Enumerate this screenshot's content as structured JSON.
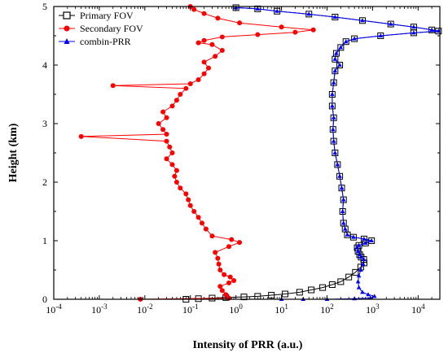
{
  "chart_data": {
    "type": "scatter",
    "xlabel": "Intensity of PRR (a.u.)",
    "ylabel": "Height (km)",
    "xscale": "log",
    "xlim": [
      0.0001,
      30000
    ],
    "ylim": [
      0,
      5
    ],
    "x_ticks": [
      {
        "value": 0.0001,
        "base": "10",
        "exp": "-4"
      },
      {
        "value": 0.001,
        "base": "10",
        "exp": "-3"
      },
      {
        "value": 0.01,
        "base": "10",
        "exp": "-2"
      },
      {
        "value": 0.1,
        "base": "10",
        "exp": "-1"
      },
      {
        "value": 1,
        "base": "10",
        "exp": "0"
      },
      {
        "value": 10,
        "base": "10",
        "exp": "1"
      },
      {
        "value": 100,
        "base": "10",
        "exp": "2"
      },
      {
        "value": 1000,
        "base": "10",
        "exp": "3"
      },
      {
        "value": 10000,
        "base": "10",
        "exp": "4"
      }
    ],
    "y_ticks": [
      "0",
      "1",
      "2",
      "3",
      "4",
      "5"
    ],
    "legend_position": "top-left",
    "grid": false,
    "series": [
      {
        "name": "Primary FOV",
        "color": "#000000",
        "marker": "open-square",
        "points": [
          [
            0.08,
            0.0
          ],
          [
            0.15,
            0.01
          ],
          [
            0.3,
            0.02
          ],
          [
            0.6,
            0.03
          ],
          [
            1.5,
            0.04
          ],
          [
            3,
            0.05
          ],
          [
            6,
            0.07
          ],
          [
            12,
            0.09
          ],
          [
            25,
            0.12
          ],
          [
            45,
            0.16
          ],
          [
            80,
            0.2
          ],
          [
            130,
            0.25
          ],
          [
            200,
            0.3
          ],
          [
            300,
            0.38
          ],
          [
            420,
            0.46
          ],
          [
            550,
            0.55
          ],
          [
            650,
            0.62
          ],
          [
            640,
            0.68
          ],
          [
            560,
            0.72
          ],
          [
            520,
            0.76
          ],
          [
            480,
            0.82
          ],
          [
            460,
            0.88
          ],
          [
            500,
            0.92
          ],
          [
            700,
            0.96
          ],
          [
            950,
            1.0
          ],
          [
            650,
            1.03
          ],
          [
            380,
            1.06
          ],
          [
            280,
            1.1
          ],
          [
            250,
            1.2
          ],
          [
            230,
            1.3
          ],
          [
            220,
            1.5
          ],
          [
            230,
            1.7
          ],
          [
            210,
            1.9
          ],
          [
            190,
            2.1
          ],
          [
            170,
            2.3
          ],
          [
            150,
            2.5
          ],
          [
            140,
            2.7
          ],
          [
            135,
            2.9
          ],
          [
            140,
            3.1
          ],
          [
            130,
            3.3
          ],
          [
            130,
            3.5
          ],
          [
            140,
            3.7
          ],
          [
            150,
            3.9
          ],
          [
            190,
            4.0
          ],
          [
            150,
            4.1
          ],
          [
            160,
            4.2
          ],
          [
            200,
            4.3
          ],
          [
            260,
            4.4
          ],
          [
            400,
            4.45
          ],
          [
            1500,
            4.5
          ],
          [
            8000,
            4.55
          ],
          [
            28000,
            4.58
          ],
          [
            20000,
            4.6
          ],
          [
            8000,
            4.65
          ],
          [
            2500,
            4.7
          ],
          [
            600,
            4.76
          ],
          [
            150,
            4.82
          ],
          [
            40,
            4.87
          ],
          [
            8,
            4.92
          ],
          [
            3,
            4.96
          ],
          [
            1,
            4.98
          ]
        ]
      },
      {
        "name": "Secondary FOV",
        "color": "#ff0000",
        "marker": "filled-circle",
        "points": [
          [
            0.008,
            0.0
          ],
          [
            0.7,
            0.02
          ],
          [
            0.6,
            0.08
          ],
          [
            0.5,
            0.15
          ],
          [
            0.45,
            0.22
          ],
          [
            0.7,
            0.28
          ],
          [
            0.9,
            0.32
          ],
          [
            0.75,
            0.38
          ],
          [
            0.55,
            0.42
          ],
          [
            0.45,
            0.5
          ],
          [
            0.42,
            0.6
          ],
          [
            0.4,
            0.7
          ],
          [
            0.35,
            0.8
          ],
          [
            0.7,
            0.9
          ],
          [
            1.2,
            0.97
          ],
          [
            0.8,
            1.02
          ],
          [
            0.3,
            1.08
          ],
          [
            0.22,
            1.2
          ],
          [
            0.18,
            1.3
          ],
          [
            0.15,
            1.4
          ],
          [
            0.12,
            1.5
          ],
          [
            0.1,
            1.6
          ],
          [
            0.09,
            1.7
          ],
          [
            0.08,
            1.8
          ],
          [
            0.06,
            1.9
          ],
          [
            0.05,
            2.0
          ],
          [
            0.045,
            2.1
          ],
          [
            0.05,
            2.2
          ],
          [
            0.04,
            2.3
          ],
          [
            0.03,
            2.4
          ],
          [
            0.04,
            2.5
          ],
          [
            0.035,
            2.6
          ],
          [
            0.03,
            2.7
          ],
          [
            0.0004,
            2.78
          ],
          [
            0.03,
            2.82
          ],
          [
            0.025,
            2.9
          ],
          [
            0.02,
            3.0
          ],
          [
            0.03,
            3.1
          ],
          [
            0.025,
            3.2
          ],
          [
            0.04,
            3.3
          ],
          [
            0.05,
            3.4
          ],
          [
            0.06,
            3.5
          ],
          [
            0.08,
            3.6
          ],
          [
            0.002,
            3.65
          ],
          [
            0.1,
            3.68
          ],
          [
            0.15,
            3.75
          ],
          [
            0.2,
            3.85
          ],
          [
            0.25,
            3.95
          ],
          [
            0.2,
            4.05
          ],
          [
            0.35,
            4.15
          ],
          [
            0.5,
            4.25
          ],
          [
            0.3,
            4.35
          ],
          [
            0.15,
            4.38
          ],
          [
            0.2,
            4.42
          ],
          [
            0.5,
            4.48
          ],
          [
            3,
            4.52
          ],
          [
            20,
            4.56
          ],
          [
            50,
            4.6
          ],
          [
            10,
            4.65
          ],
          [
            1.2,
            4.72
          ],
          [
            0.4,
            4.8
          ],
          [
            0.2,
            4.88
          ],
          [
            0.12,
            4.95
          ],
          [
            0.1,
            5.0
          ]
        ]
      },
      {
        "name": "combin-PRR",
        "color": "#0000ff",
        "marker": "filled-triangle",
        "points": [
          [
            10,
            0.0
          ],
          [
            30,
            0.0
          ],
          [
            100,
            0.0
          ],
          [
            400,
            0.01
          ],
          [
            900,
            0.02
          ],
          [
            1100,
            0.05
          ],
          [
            800,
            0.08
          ],
          [
            600,
            0.12
          ],
          [
            500,
            0.2
          ],
          [
            480,
            0.3
          ],
          [
            500,
            0.4
          ],
          [
            550,
            0.5
          ],
          [
            620,
            0.6
          ],
          [
            640,
            0.68
          ],
          [
            560,
            0.72
          ],
          [
            520,
            0.76
          ],
          [
            480,
            0.82
          ],
          [
            460,
            0.88
          ],
          [
            500,
            0.92
          ],
          [
            700,
            0.96
          ],
          [
            950,
            1.0
          ],
          [
            650,
            1.03
          ],
          [
            380,
            1.06
          ],
          [
            280,
            1.1
          ],
          [
            250,
            1.2
          ],
          [
            230,
            1.3
          ],
          [
            220,
            1.5
          ],
          [
            230,
            1.7
          ],
          [
            210,
            1.9
          ],
          [
            190,
            2.1
          ],
          [
            170,
            2.3
          ],
          [
            150,
            2.5
          ],
          [
            140,
            2.7
          ],
          [
            135,
            2.9
          ],
          [
            140,
            3.1
          ],
          [
            130,
            3.3
          ],
          [
            130,
            3.5
          ],
          [
            140,
            3.7
          ],
          [
            150,
            3.9
          ],
          [
            190,
            4.0
          ],
          [
            150,
            4.1
          ],
          [
            160,
            4.2
          ],
          [
            200,
            4.3
          ],
          [
            260,
            4.4
          ],
          [
            400,
            4.45
          ],
          [
            1500,
            4.5
          ],
          [
            8000,
            4.55
          ],
          [
            28000,
            4.58
          ],
          [
            20000,
            4.6
          ],
          [
            8000,
            4.65
          ],
          [
            2500,
            4.7
          ],
          [
            600,
            4.76
          ],
          [
            150,
            4.82
          ],
          [
            40,
            4.87
          ],
          [
            8,
            4.92
          ],
          [
            3,
            4.96
          ],
          [
            1,
            4.98
          ]
        ]
      }
    ]
  }
}
